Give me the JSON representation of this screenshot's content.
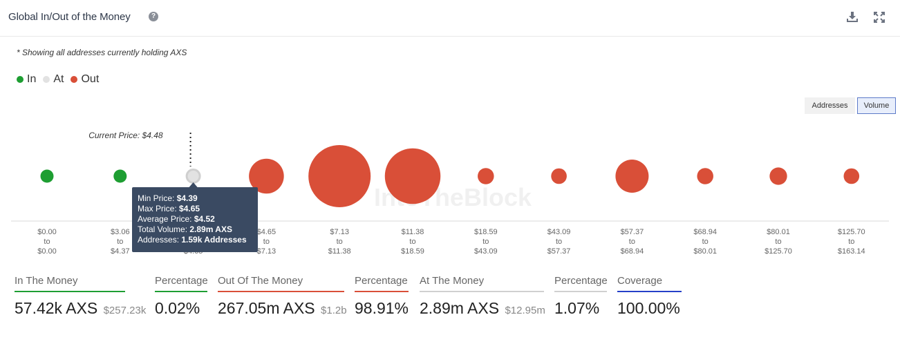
{
  "header": {
    "title": "Global In/Out of the Money",
    "help_glyph": "?",
    "help_icon": "question-circle-icon",
    "download_icon": "download-icon",
    "expand_icon": "expand-icon"
  },
  "note": "* Showing all addresses currently holding AXS",
  "legend": [
    {
      "label": "In",
      "color": "#1e9e32"
    },
    {
      "label": "At",
      "color": "#e2e2e2"
    },
    {
      "label": "Out",
      "color": "#d94f38"
    }
  ],
  "toggles": {
    "addresses": "Addresses",
    "volume": "Volume",
    "active": "volume"
  },
  "chart_data": {
    "type": "bubble",
    "size_metric": "Volume",
    "current_price_label": "Current Price: $4.48",
    "current_price_bin": 2,
    "bins": [
      {
        "from": "$0.00",
        "to": "$0.00",
        "status": "in",
        "volume_axs_m": 0.01
      },
      {
        "from": "$3.06",
        "to": "$4.37",
        "status": "in",
        "volume_axs_m": 0.05
      },
      {
        "from": "$4.39",
        "to": "$4.65",
        "status": "at",
        "volume_axs_m": 2.89
      },
      {
        "from": "$4.65",
        "to": "$7.13",
        "status": "out",
        "volume_axs_m": 30
      },
      {
        "from": "$7.13",
        "to": "$11.38",
        "status": "out",
        "volume_axs_m": 95
      },
      {
        "from": "$11.38",
        "to": "$18.59",
        "status": "out",
        "volume_axs_m": 76
      },
      {
        "from": "$18.59",
        "to": "$43.09",
        "status": "out",
        "volume_axs_m": 6.5
      },
      {
        "from": "$43.09",
        "to": "$57.37",
        "status": "out",
        "volume_axs_m": 6.0
      },
      {
        "from": "$57.37",
        "to": "$68.94",
        "status": "out",
        "volume_axs_m": 27
      },
      {
        "from": "$68.94",
        "to": "$80.01",
        "status": "out",
        "volume_axs_m": 6.5
      },
      {
        "from": "$80.01",
        "to": "$125.70",
        "status": "out",
        "volume_axs_m": 7.5
      },
      {
        "from": "$125.70",
        "to": "$163.14",
        "status": "out",
        "volume_axs_m": 6.0
      }
    ],
    "tick_to_word": "to",
    "watermark": "IntoTheBlock",
    "tooltip": {
      "bin": 2,
      "rows": [
        {
          "label": "Min Price:",
          "value": "$4.39"
        },
        {
          "label": "Max Price:",
          "value": "$4.65"
        },
        {
          "label": "Average Price:",
          "value": "$4.52"
        },
        {
          "label": "Total Volume:",
          "value": "2.89m AXS"
        },
        {
          "label": "Addresses:",
          "value": "1.59k Addresses"
        }
      ]
    }
  },
  "stats": [
    {
      "label": "In The Money",
      "value": "57.42k AXS",
      "sub": "$257.23k",
      "color": "#1e9e32"
    },
    {
      "label": "Percentage",
      "value": "0.02%",
      "sub": "",
      "color": "#1e9e32"
    },
    {
      "label": "Out Of The Money",
      "value": "267.05m AXS",
      "sub": "$1.2b",
      "color": "#d94f38"
    },
    {
      "label": "Percentage",
      "value": "98.91%",
      "sub": "",
      "color": "#d94f38"
    },
    {
      "label": "At The Money",
      "value": "2.89m AXS",
      "sub": "$12.95m",
      "color": "#d0d0d0"
    },
    {
      "label": "Percentage",
      "value": "1.07%",
      "sub": "",
      "color": "#d0d0d0"
    },
    {
      "label": "Coverage",
      "value": "100.00%",
      "sub": "",
      "color": "#2540c8"
    }
  ]
}
